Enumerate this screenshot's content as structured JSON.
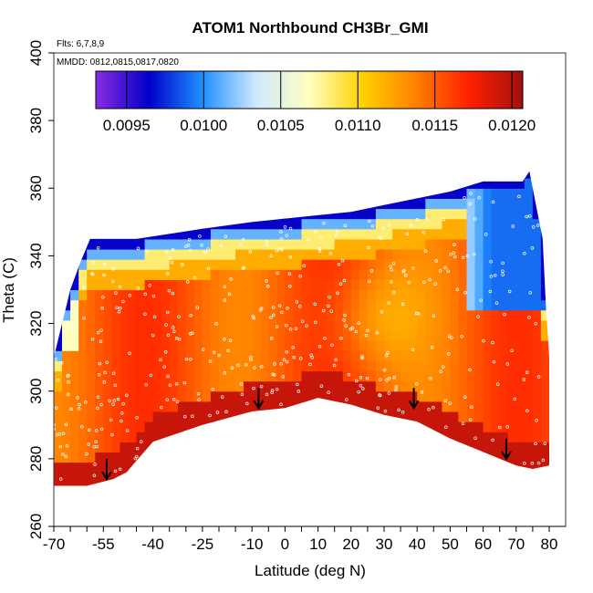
{
  "chart_data": {
    "type": "heatmap",
    "title": "ATOM1 Northbound CH3Br_GMI",
    "note_flights": "Flts: 6,7,8,9",
    "note_dates": "MMDD: 0812,0815,0817,0820",
    "xlabel": "Latitude (deg N)",
    "ylabel": "Theta (C)",
    "xlim": [
      -70,
      80
    ],
    "ylim": [
      260,
      400
    ],
    "x_ticks": [
      -70,
      -55,
      -40,
      -25,
      -10,
      0,
      10,
      20,
      30,
      40,
      50,
      60,
      70,
      80
    ],
    "x_tick_labels": [
      "-70",
      "-55",
      "-40",
      "-25",
      "-10",
      "0",
      "10",
      "20",
      "30",
      "40",
      "50",
      "60",
      "70",
      "80"
    ],
    "y_ticks": [
      260,
      280,
      300,
      320,
      340,
      360,
      380,
      400
    ],
    "y_tick_labels": [
      "260",
      "280",
      "300",
      "320",
      "340",
      "360",
      "380",
      "400"
    ],
    "colorbar": {
      "range": [
        0.0093,
        0.01207
      ],
      "ticks": [
        0.0095,
        0.01,
        0.0105,
        0.011,
        0.0115,
        0.012
      ],
      "tick_labels": [
        "0.0095",
        "0.0100",
        "0.0105",
        "0.0110",
        "0.0115",
        "0.0120"
      ],
      "colors": [
        "#8a2be2",
        "#0000c8",
        "#1e90ff",
        "#cfe8ff",
        "#ffffc0",
        "#ffd000",
        "#ff8000",
        "#ff2000",
        "#a01010"
      ]
    },
    "top_boundary": [
      [
        -59,
        345
      ],
      [
        -45,
        345
      ],
      [
        -25,
        348
      ],
      [
        -10,
        350
      ],
      [
        0,
        351
      ],
      [
        10,
        352
      ],
      [
        20,
        353
      ],
      [
        30,
        355
      ],
      [
        40,
        357
      ],
      [
        50,
        359
      ],
      [
        60,
        362
      ],
      [
        72,
        362
      ],
      [
        74,
        365
      ],
      [
        76,
        355
      ],
      [
        78,
        345
      ],
      [
        79,
        325
      ],
      [
        80,
        310
      ]
    ],
    "bottom_boundary": [
      [
        -70,
        272
      ],
      [
        -60,
        272
      ],
      [
        -52,
        274
      ],
      [
        -48,
        276
      ],
      [
        -40,
        285
      ],
      [
        -25,
        290
      ],
      [
        -10,
        294
      ],
      [
        0,
        295
      ],
      [
        10,
        298
      ],
      [
        20,
        296
      ],
      [
        30,
        293
      ],
      [
        40,
        291
      ],
      [
        50,
        286
      ],
      [
        60,
        282
      ],
      [
        70,
        278
      ],
      [
        75,
        277
      ],
      [
        80,
        278
      ]
    ],
    "arrows_latitude": [
      -54,
      -8,
      39,
      67
    ],
    "arrow_tips_theta": [
      274,
      295,
      295,
      280
    ]
  }
}
